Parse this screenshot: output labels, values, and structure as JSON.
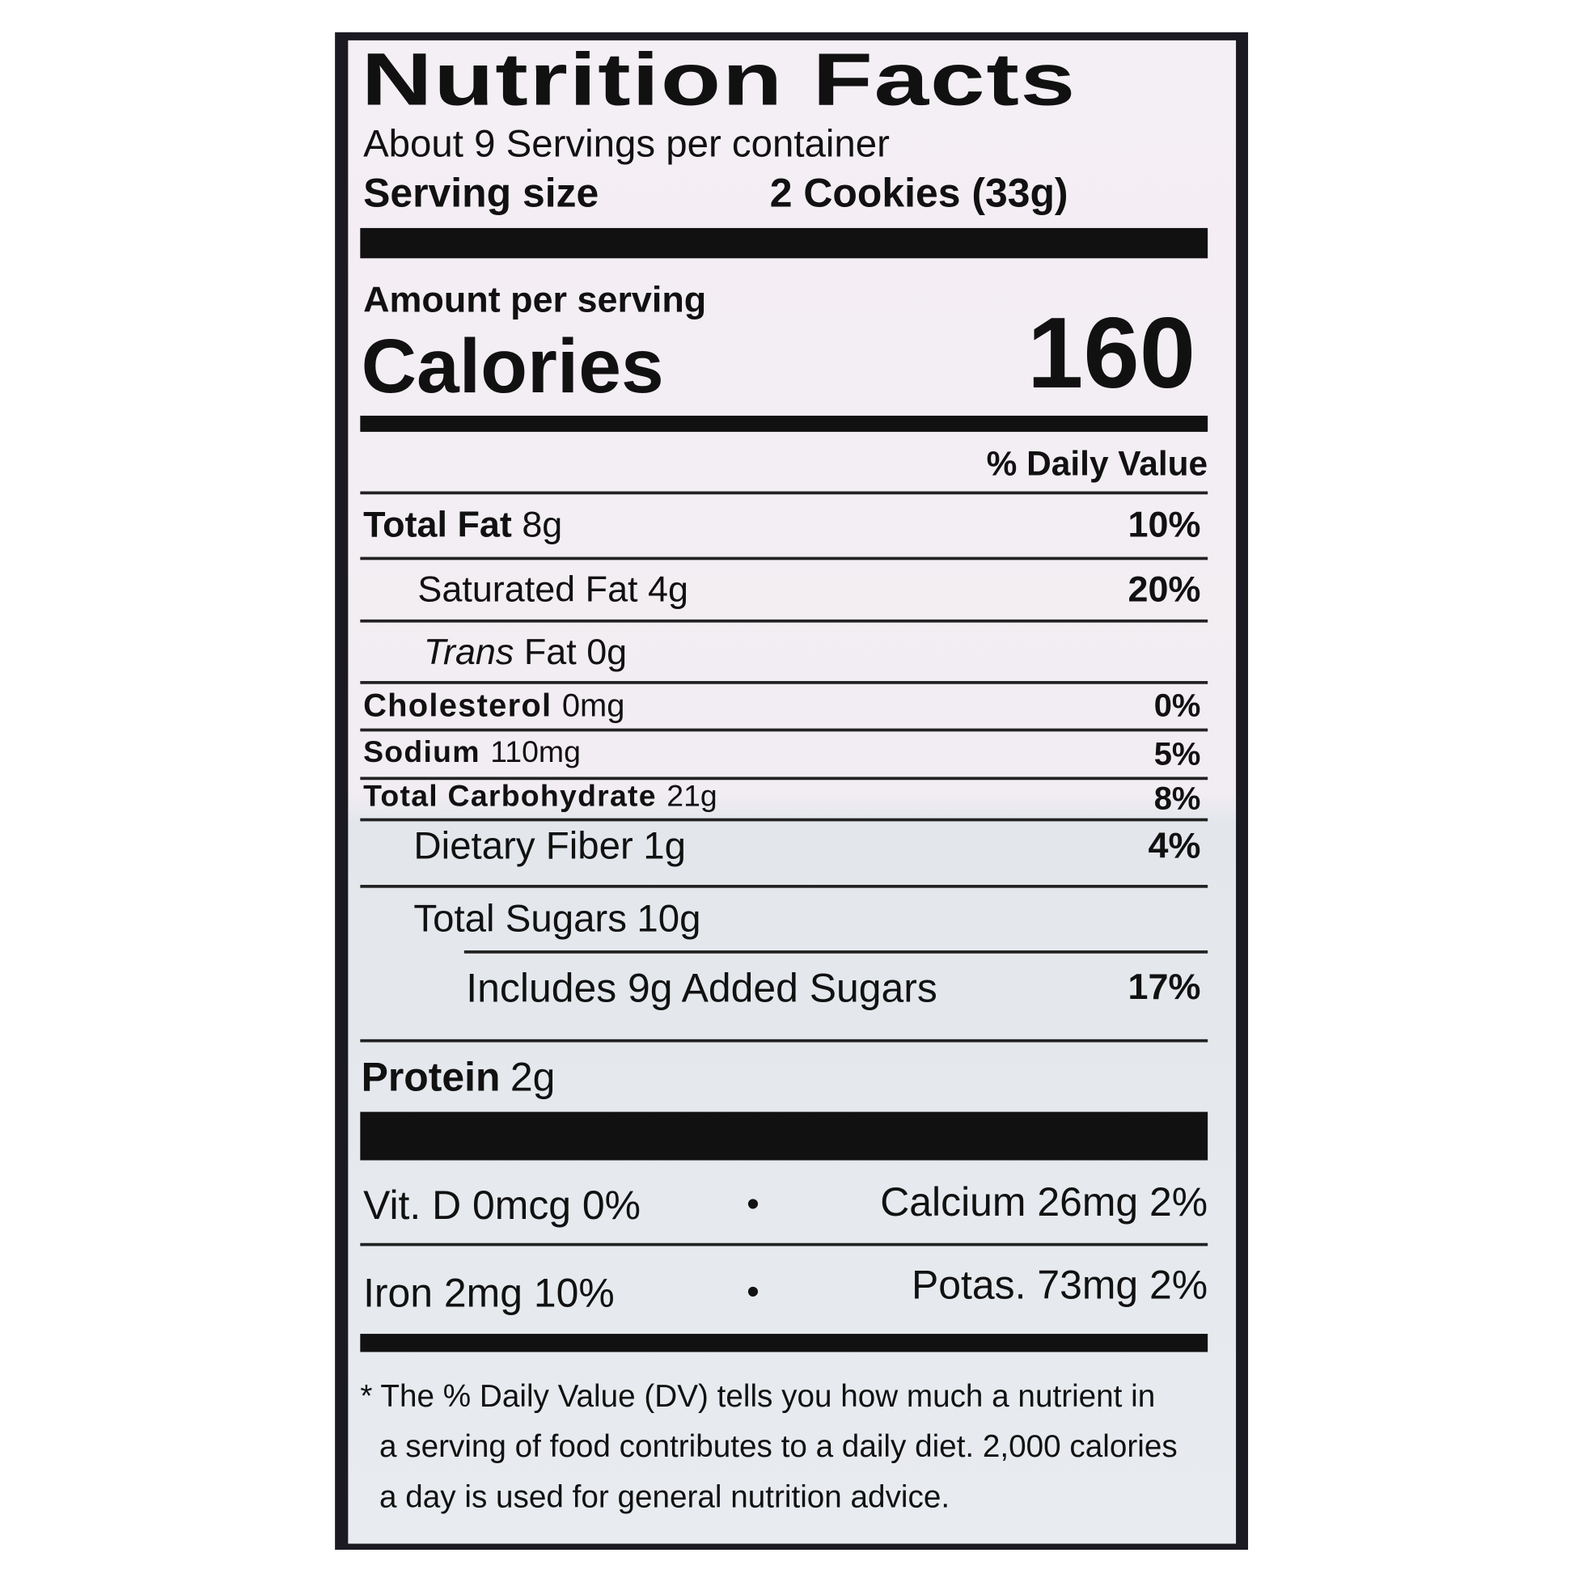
{
  "label": {
    "title": "Nutrition Facts",
    "servings_per_container": "About 9 Servings per container",
    "serving_size_label": "Serving size",
    "serving_size_value": "2 Cookies (33g)",
    "amount_per_serving": "Amount per serving",
    "calories_label": "Calories",
    "calories_value": "160",
    "daily_value_header": "% Daily Value",
    "nutrients": [
      {
        "name": "Total Fat",
        "amount": "8g",
        "dv": "10%"
      },
      {
        "name": "Saturated Fat",
        "amount": "4g",
        "dv": "20%"
      },
      {
        "name": "Trans",
        "name_suffix": "Fat",
        "amount": "0g",
        "dv": ""
      },
      {
        "name": "Cholesterol",
        "amount": "0mg",
        "dv": "0%"
      },
      {
        "name": "Sodium",
        "amount": "110mg",
        "dv": "5%"
      },
      {
        "name": "Total Carbohydrate",
        "amount": "21g",
        "dv": "8%"
      },
      {
        "name": "Dietary Fiber",
        "amount": "1g",
        "dv": "4%"
      },
      {
        "name": "Total Sugars",
        "amount": "10g",
        "dv": ""
      },
      {
        "name": "Includes 9g Added Sugars",
        "amount": "",
        "dv": "17%"
      },
      {
        "name": "Protein",
        "amount": "2g",
        "dv": ""
      }
    ],
    "vitamins": [
      {
        "left": "Vit. D 0mcg 0%",
        "right": "Calcium 26mg 2%"
      },
      {
        "left": "Iron 2mg 10%",
        "right": "Potas. 73mg 2%"
      }
    ],
    "bullet": "•",
    "footnote": [
      "* The % Daily Value (DV) tells you how much a nutrient in",
      "a serving of food contributes to a daily diet. 2,000 calories",
      "a day is used for general nutrition advice."
    ]
  },
  "colors": {
    "package": "#1b1a22",
    "label": "#f4eff4",
    "ink": "#111111"
  }
}
